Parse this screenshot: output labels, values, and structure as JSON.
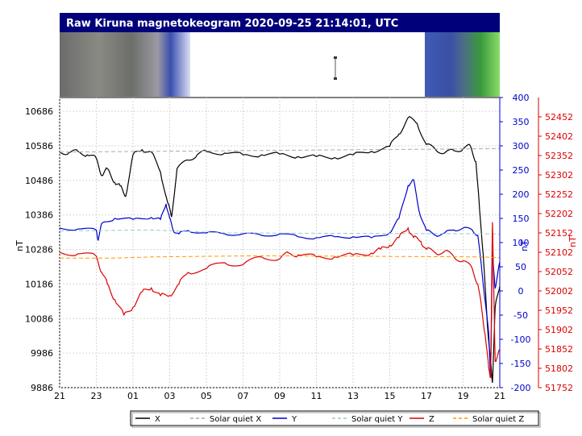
{
  "chart_data": {
    "type": "line",
    "title": "Raw Kiruna magnetokeogram 2020-09-25 21:14:01, UTC",
    "x_ticks": [
      "21",
      "23",
      "01",
      "03",
      "05",
      "07",
      "09",
      "11",
      "13",
      "15",
      "17",
      "19",
      "21"
    ],
    "x_range_hours": [
      21,
      45
    ],
    "y_left": {
      "label": "nT",
      "color": "#000000",
      "ticks": [
        9886,
        9986,
        10086,
        10186,
        10286,
        10386,
        10486,
        10586,
        10686
      ],
      "range": [
        9886,
        10726
      ]
    },
    "y_right1": {
      "label": "nT",
      "color": "#0000cc",
      "ticks": [
        -200,
        -150,
        -100,
        -50,
        0,
        50,
        100,
        150,
        200,
        250,
        300,
        350,
        400
      ],
      "range": [
        -200,
        400
      ]
    },
    "y_right2": {
      "label": "nT",
      "color": "#dd0000",
      "ticks": [
        51752,
        51802,
        51852,
        51902,
        51952,
        52002,
        52052,
        52102,
        52152,
        52202,
        52252,
        52302,
        52352,
        52402,
        52452
      ],
      "range": [
        51752,
        52502
      ]
    },
    "grid": true,
    "series": [
      {
        "name": "X",
        "axis": "left",
        "color": "#000000",
        "style": "solid",
        "x": [
          21,
          21.5,
          22,
          22.5,
          23,
          23.3,
          23.6,
          24,
          24.3,
          24.6,
          25,
          25.5,
          26,
          26.5,
          26.9,
          27.1,
          27.4,
          28,
          28.5,
          29,
          30,
          31,
          32,
          33,
          34,
          35,
          36,
          37,
          38,
          39,
          39.5,
          40,
          40.5,
          41,
          41.5,
          42,
          42.5,
          43,
          43.4,
          43.7,
          43.9,
          44.1,
          44.2,
          44.35,
          44.5,
          44.6,
          44.75,
          45
        ],
        "y": [
          10568,
          10566,
          10570,
          10560,
          10550,
          10500,
          10520,
          10480,
          10470,
          10440,
          10560,
          10575,
          10568,
          10510,
          10420,
          10380,
          10520,
          10545,
          10560,
          10570,
          10565,
          10560,
          10560,
          10562,
          10555,
          10555,
          10552,
          10560,
          10570,
          10585,
          10620,
          10668,
          10650,
          10590,
          10575,
          10566,
          10572,
          10578,
          10586,
          10540,
          10400,
          10270,
          10180,
          10050,
          9960,
          9900,
          10120,
          10180
        ]
      },
      {
        "name": "Solar quiet X",
        "axis": "left",
        "color": "#aaaaaa",
        "style": "dashed",
        "x": [
          21,
          45
        ],
        "y": [
          10568,
          10578
        ]
      },
      {
        "name": "Y",
        "axis": "right1",
        "color": "#0000cc",
        "style": "solid",
        "x": [
          21,
          22,
          23,
          23.1,
          23.3,
          24,
          25,
          26,
          26.5,
          26.8,
          27,
          27.2,
          27.5,
          28,
          29,
          30,
          31,
          32,
          33,
          34,
          35,
          36,
          37,
          38,
          39,
          39.5,
          40,
          40.3,
          40.6,
          41,
          41.5,
          42,
          42.5,
          43,
          43.5,
          43.8,
          44,
          44.2,
          44.4,
          44.5,
          44.6,
          44.75,
          45
        ],
        "y": [
          130,
          128,
          126,
          105,
          140,
          150,
          148,
          152,
          148,
          180,
          150,
          125,
          118,
          125,
          120,
          118,
          118,
          115,
          118,
          112,
          110,
          112,
          112,
          110,
          120,
          150,
          218,
          230,
          165,
          125,
          115,
          120,
          126,
          130,
          126,
          115,
          50,
          -20,
          -90,
          -180,
          80,
          5,
          60
        ]
      },
      {
        "name": "Solar quiet Y",
        "axis": "right1",
        "color": "#99cccc",
        "style": "dashed",
        "x": [
          21,
          26,
          30,
          45
        ],
        "y": [
          124,
          126,
          120,
          118
        ]
      },
      {
        "name": "Z",
        "axis": "right2",
        "color": "#dd0000",
        "style": "solid",
        "x": [
          21,
          22,
          23,
          23.3,
          23.6,
          24,
          24.5,
          25,
          25.5,
          26,
          26.5,
          27,
          27.5,
          28,
          29,
          30,
          31,
          32,
          33,
          33.5,
          34,
          35,
          36,
          37,
          38,
          38.5,
          39,
          39.5,
          40,
          40.3,
          40.7,
          41,
          41.5,
          42,
          42.5,
          43,
          43.5,
          43.8,
          44,
          44.2,
          44.4,
          44.5,
          44.6,
          44.75,
          45
        ],
        "y": [
          52102,
          52098,
          52092,
          52050,
          52020,
          51980,
          51940,
          51960,
          52000,
          52010,
          51990,
          51990,
          52020,
          52050,
          52060,
          52075,
          52070,
          52090,
          52085,
          52100,
          52095,
          52090,
          52090,
          52095,
          52100,
          52110,
          52120,
          52140,
          52165,
          52140,
          52130,
          52110,
          52100,
          52105,
          52090,
          52080,
          52060,
          52020,
          51960,
          51890,
          51800,
          51780,
          52180,
          51820,
          51850
        ]
      },
      {
        "name": "Solar quiet Z",
        "axis": "right2",
        "color": "#ff9900",
        "style": "dashed",
        "x": [
          21,
          24,
          26,
          32,
          40,
          44,
          45
        ],
        "y": [
          52087,
          52087,
          52090,
          52093,
          52091,
          52090,
          52088
        ]
      }
    ],
    "legend": [
      "X",
      "Solar quiet X",
      "Y",
      "Solar quiet Y",
      "Z",
      "Solar quiet Z"
    ],
    "legend_position": "bottom-right"
  }
}
